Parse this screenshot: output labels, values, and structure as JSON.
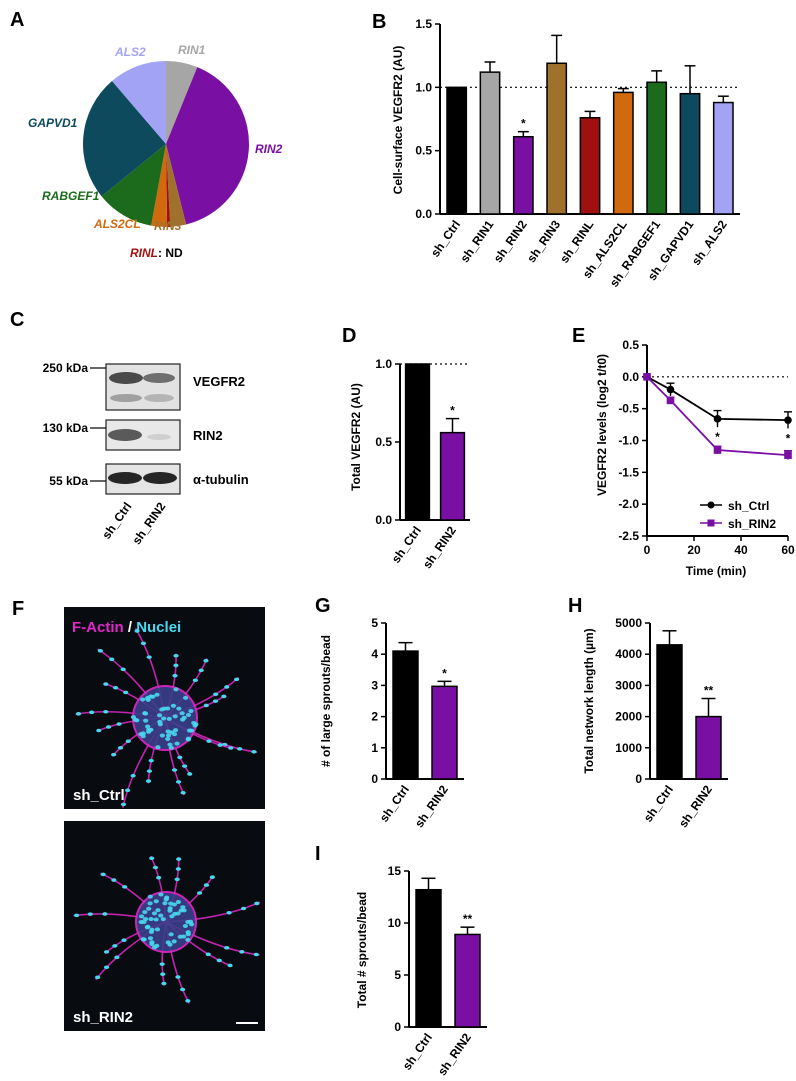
{
  "panels": {
    "A": "A",
    "B": "B",
    "C": "C",
    "D": "D",
    "E": "E",
    "F": "F",
    "G": "G",
    "H": "H",
    "I": "I"
  },
  "colors": {
    "black": "#000000",
    "grey": "#a6a6a6",
    "purple": "#7a0fa3",
    "brown": "#a0712d",
    "darkred": "#a11010",
    "orange": "#d1690f",
    "green": "#1c6b1c",
    "teal": "#0e4a5e",
    "lavender": "#a3a3f5"
  },
  "chart_data": [
    {
      "panel": "A",
      "type": "pie",
      "slices": [
        {
          "label": "RIN1",
          "value": 6,
          "color": "#a6a6a6"
        },
        {
          "label": "RIN2",
          "value": 39,
          "color": "#7a0fa3"
        },
        {
          "label": "RIN3",
          "value": 3,
          "color": "#a0712d"
        },
        {
          "label": "RINL",
          "value": 0.6,
          "color": "#a11010"
        },
        {
          "label": "ALS2CL",
          "value": 3,
          "color": "#d1690f"
        },
        {
          "label": "RABGEF1",
          "value": 11,
          "color": "#1c6b1c"
        },
        {
          "label": "GAPVD1",
          "value": 24,
          "color": "#0e4a5e"
        },
        {
          "label": "ALS2",
          "value": 11,
          "color": "#a3a3f5"
        }
      ],
      "note_label": "RINL",
      "note_suffix": ": ND"
    },
    {
      "panel": "B",
      "type": "bar",
      "ylabel": "Cell-surface VEGFR2 (AU)",
      "categories": [
        "sh_Ctrl",
        "sh_RIN1",
        "sh_RIN2",
        "sh_RIN3",
        "sh_RINL",
        "sh_ALS2CL",
        "sh_RABGEF1",
        "sh_GAPVD1",
        "sh_ALS2"
      ],
      "values": [
        1.0,
        1.12,
        0.61,
        1.19,
        0.76,
        0.96,
        1.04,
        0.95,
        0.88
      ],
      "errors": [
        0,
        0.08,
        0.04,
        0.22,
        0.05,
        0.03,
        0.09,
        0.22,
        0.05
      ],
      "colors": [
        "#000000",
        "#a6a6a6",
        "#7a0fa3",
        "#a0712d",
        "#a11010",
        "#d1690f",
        "#1c6b1c",
        "#0e4a5e",
        "#a3a3f5"
      ],
      "ylim": [
        0,
        1.5
      ],
      "yticks": [
        "0.0",
        "0.5",
        "1.0",
        "1.5"
      ],
      "reference_line": 1.0,
      "significance": [
        {
          "index": 2,
          "mark": "*"
        }
      ]
    },
    {
      "panel": "D",
      "type": "bar",
      "ylabel": "Total VEGFR2 (AU)",
      "categories": [
        "sh_Ctrl",
        "sh_RIN2"
      ],
      "values": [
        1.0,
        0.56
      ],
      "errors": [
        0,
        0.09
      ],
      "colors": [
        "#000000",
        "#7a0fa3"
      ],
      "ylim": [
        0,
        1.0
      ],
      "yticks": [
        "0.0",
        "0.5",
        "1.0"
      ],
      "reference_line": 1.0,
      "significance": [
        {
          "index": 1,
          "mark": "*"
        }
      ]
    },
    {
      "panel": "E",
      "type": "line",
      "xlabel": "Time (min)",
      "ylabel": "VEGFR2 levels (log2 t/t0)",
      "x": [
        0,
        10,
        30,
        60
      ],
      "series": [
        {
          "name": "sh_Ctrl",
          "values": [
            0,
            -0.2,
            -0.66,
            -0.68
          ],
          "errors": [
            0,
            0.1,
            0.13,
            0.13
          ],
          "color": "#000000",
          "marker": "circle"
        },
        {
          "name": "sh_RIN2",
          "values": [
            0,
            -0.37,
            -1.15,
            -1.23
          ],
          "errors": [
            0,
            0.05,
            0.06,
            0.07
          ],
          "color": "#7a0fa3",
          "marker": "square"
        }
      ],
      "xlim": [
        0,
        60
      ],
      "xticks": [
        "0",
        "20",
        "40",
        "60"
      ],
      "ylim": [
        -2.5,
        0.5
      ],
      "yticks": [
        "0.5",
        "0.0",
        "-0.5",
        "-1.0",
        "-1.5",
        "-2.0",
        "-2.5"
      ],
      "reference_line": 0,
      "significance": [
        {
          "x": 30,
          "mark": "*"
        },
        {
          "x": 60,
          "mark": "*"
        }
      ],
      "legend": "bottom-right"
    },
    {
      "panel": "G",
      "type": "bar",
      "ylabel": "# of large sprouts/bead",
      "categories": [
        "sh_Ctrl",
        "sh_RIN2"
      ],
      "values": [
        4.1,
        2.97
      ],
      "errors": [
        0.27,
        0.16
      ],
      "colors": [
        "#000000",
        "#7a0fa3"
      ],
      "ylim": [
        0,
        5
      ],
      "yticks": [
        "0",
        "1",
        "2",
        "3",
        "4",
        "5"
      ],
      "significance": [
        {
          "index": 1,
          "mark": "*"
        }
      ]
    },
    {
      "panel": "H",
      "type": "bar",
      "ylabel": "Total network length (µm)",
      "categories": [
        "sh_Ctrl",
        "sh_RIN2"
      ],
      "values": [
        4300,
        2000
      ],
      "errors": [
        450,
        580
      ],
      "colors": [
        "#000000",
        "#7a0fa3"
      ],
      "ylim": [
        0,
        5000
      ],
      "yticks": [
        "0",
        "1000",
        "2000",
        "3000",
        "4000",
        "5000"
      ],
      "significance": [
        {
          "index": 1,
          "mark": "**"
        }
      ]
    },
    {
      "panel": "I",
      "type": "bar",
      "ylabel": "Total # sprouts/bead",
      "categories": [
        "sh_Ctrl",
        "sh_RIN2"
      ],
      "values": [
        13.2,
        8.9
      ],
      "errors": [
        1.1,
        0.7
      ],
      "colors": [
        "#000000",
        "#7a0fa3"
      ],
      "ylim": [
        0,
        15
      ],
      "yticks": [
        "0",
        "5",
        "10",
        "15"
      ],
      "significance": [
        {
          "index": 1,
          "mark": "**"
        }
      ]
    }
  ],
  "western_blot": {
    "markers": [
      "250 kDa",
      "130 kDa",
      "55 kDa"
    ],
    "proteins": [
      "VEGFR2",
      "RIN2",
      "α-tubulin"
    ],
    "lanes": [
      "sh_Ctrl",
      "sh_RIN2"
    ]
  },
  "microscopy": {
    "stain_actin": "F-Actin",
    "stain_sep": " / ",
    "stain_nuclei": "Nuclei",
    "image1_label": "sh_Ctrl",
    "image2_label": "sh_RIN2",
    "actin_color": "#e028c8",
    "nuclei_color": "#48d8f0"
  }
}
